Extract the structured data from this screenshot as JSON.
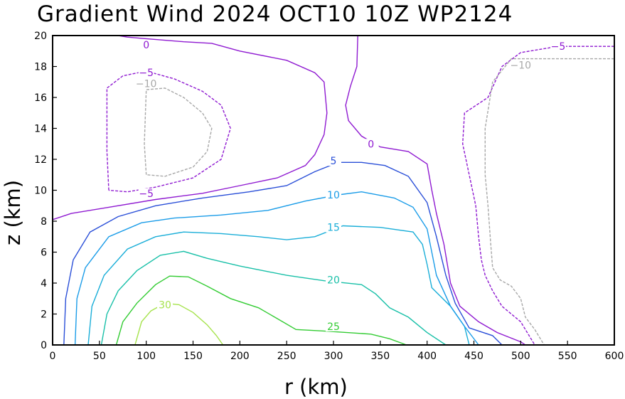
{
  "chart_data": {
    "type": "contour",
    "title": "Gradient Wind 2024 OCT10 10Z  WP2124",
    "xlabel": "r (km)",
    "ylabel": "z (km)",
    "xlim": [
      0,
      600
    ],
    "ylim": [
      0,
      20
    ],
    "xticks": [
      0,
      50,
      100,
      150,
      200,
      250,
      300,
      350,
      400,
      450,
      500,
      550,
      600
    ],
    "yticks": [
      0,
      2,
      4,
      6,
      8,
      10,
      12,
      14,
      16,
      18,
      20
    ],
    "contours": [
      {
        "level": "30",
        "color": "#a6e34d",
        "dashed": false,
        "points": [
          [
            88,
            0
          ],
          [
            95,
            1.5
          ],
          [
            105,
            2.2
          ],
          [
            120,
            2.7
          ],
          [
            135,
            2.6
          ],
          [
            150,
            2.1
          ],
          [
            165,
            1.3
          ],
          [
            175,
            0.6
          ],
          [
            182,
            0
          ]
        ],
        "labels": [
          {
            "text": "30",
            "x": 120,
            "y": 2.6
          }
        ]
      },
      {
        "level": "25",
        "color": "#33cc33",
        "dashed": false,
        "points": [
          [
            68,
            0
          ],
          [
            75,
            1.5
          ],
          [
            90,
            2.7
          ],
          [
            110,
            3.9
          ],
          [
            125,
            4.45
          ],
          [
            145,
            4.4
          ],
          [
            165,
            3.8
          ],
          [
            190,
            3.0
          ],
          [
            220,
            2.4
          ],
          [
            240,
            1.7
          ],
          [
            260,
            1.0
          ],
          [
            290,
            0.9
          ],
          [
            340,
            0.7
          ],
          [
            360,
            0.4
          ],
          [
            378,
            0
          ]
        ],
        "labels": [
          {
            "text": "25",
            "x": 300,
            "y": 1.2
          }
        ]
      },
      {
        "level": "20",
        "color": "#19c0a8",
        "dashed": false,
        "points": [
          [
            52,
            0
          ],
          [
            58,
            2
          ],
          [
            70,
            3.5
          ],
          [
            90,
            4.8
          ],
          [
            115,
            5.8
          ],
          [
            140,
            6.05
          ],
          [
            165,
            5.6
          ],
          [
            200,
            5.1
          ],
          [
            250,
            4.5
          ],
          [
            290,
            4.15
          ],
          [
            330,
            3.9
          ],
          [
            345,
            3.3
          ],
          [
            360,
            2.4
          ],
          [
            380,
            1.8
          ],
          [
            400,
            0.8
          ],
          [
            420,
            0
          ]
        ],
        "labels": [
          {
            "text": "20",
            "x": 300,
            "y": 4.2
          }
        ]
      },
      {
        "level": "15",
        "color": "#1aaed8",
        "dashed": false,
        "points": [
          [
            38,
            0
          ],
          [
            42,
            2.5
          ],
          [
            55,
            4.5
          ],
          [
            80,
            6.2
          ],
          [
            110,
            7.0
          ],
          [
            140,
            7.3
          ],
          [
            180,
            7.2
          ],
          [
            220,
            7.0
          ],
          [
            250,
            6.8
          ],
          [
            280,
            7.0
          ],
          [
            310,
            7.7
          ],
          [
            350,
            7.6
          ],
          [
            385,
            7.3
          ],
          [
            395,
            6.5
          ],
          [
            400,
            5.2
          ],
          [
            405,
            3.7
          ],
          [
            425,
            2.5
          ],
          [
            440,
            1.2
          ],
          [
            445,
            0
          ]
        ],
        "labels": [
          {
            "text": "15",
            "x": 300,
            "y": 7.6
          }
        ]
      },
      {
        "level": "10",
        "color": "#1a9ce8",
        "dashed": false,
        "points": [
          [
            24,
            0
          ],
          [
            26,
            3
          ],
          [
            35,
            5
          ],
          [
            60,
            7
          ],
          [
            95,
            7.9
          ],
          [
            130,
            8.2
          ],
          [
            180,
            8.4
          ],
          [
            230,
            8.7
          ],
          [
            270,
            9.3
          ],
          [
            305,
            9.7
          ],
          [
            330,
            9.9
          ],
          [
            365,
            9.5
          ],
          [
            385,
            8.9
          ],
          [
            400,
            7.5
          ],
          [
            410,
            4.5
          ],
          [
            425,
            2.5
          ],
          [
            440,
            1.2
          ],
          [
            455,
            0
          ]
        ],
        "labels": [
          {
            "text": "10",
            "x": 300,
            "y": 9.7
          }
        ]
      },
      {
        "level": "5",
        "color": "#2a4fd8",
        "dashed": false,
        "points": [
          [
            12,
            0
          ],
          [
            14,
            3
          ],
          [
            22,
            5.5
          ],
          [
            40,
            7.3
          ],
          [
            70,
            8.3
          ],
          [
            110,
            9.0
          ],
          [
            160,
            9.5
          ],
          [
            210,
            9.9
          ],
          [
            250,
            10.3
          ],
          [
            280,
            11.2
          ],
          [
            305,
            11.8
          ],
          [
            330,
            11.8
          ],
          [
            355,
            11.6
          ],
          [
            380,
            10.9
          ],
          [
            400,
            9.2
          ],
          [
            410,
            7.0
          ],
          [
            420,
            4.5
          ],
          [
            430,
            2.7
          ],
          [
            445,
            1.1
          ],
          [
            470,
            0.6
          ],
          [
            480,
            0
          ]
        ],
        "labels": [
          {
            "text": "5",
            "x": 300,
            "y": 11.9
          }
        ]
      },
      {
        "level": "0",
        "color": "#8f1ad1",
        "dashed": false,
        "points": [
          [
            0,
            8.1
          ],
          [
            20,
            8.5
          ],
          [
            60,
            8.9
          ],
          [
            110,
            9.4
          ],
          [
            160,
            9.8
          ],
          [
            200,
            10.3
          ],
          [
            240,
            10.8
          ],
          [
            270,
            11.6
          ],
          [
            280,
            12.3
          ],
          [
            290,
            13.6
          ],
          [
            293,
            15.0
          ],
          [
            290,
            17.0
          ],
          [
            280,
            17.6
          ],
          [
            250,
            18.4
          ],
          [
            200,
            19.0
          ],
          [
            170,
            19.5
          ],
          [
            140,
            19.6
          ],
          [
            100,
            19.8
          ],
          [
            80,
            19.9
          ],
          [
            70,
            20
          ]
        ],
        "labels": [
          {
            "text": "0",
            "x": 100,
            "y": 19.4
          }
        ]
      },
      {
        "level": "0",
        "color": "#8f1ad1",
        "dashed": false,
        "points": [
          [
            326,
            20
          ],
          [
            325,
            18
          ],
          [
            318,
            16.7
          ],
          [
            313,
            15.5
          ],
          [
            316,
            14.5
          ],
          [
            330,
            13.5
          ],
          [
            350,
            12.8
          ],
          [
            380,
            12.5
          ],
          [
            400,
            11.7
          ],
          [
            405,
            10.0
          ],
          [
            410,
            8.5
          ],
          [
            418,
            6.5
          ],
          [
            425,
            4.0
          ],
          [
            435,
            2.5
          ],
          [
            455,
            1.5
          ],
          [
            475,
            0.8
          ],
          [
            500,
            0.2
          ],
          [
            505,
            0
          ]
        ],
        "labels": [
          {
            "text": "0",
            "x": 340,
            "y": 13.0
          }
        ]
      },
      {
        "level": "-5",
        "color": "#8f1ad1",
        "dashed": true,
        "points": [
          [
            60,
            10.0
          ],
          [
            58,
            12.5
          ],
          [
            58,
            16.6
          ],
          [
            75,
            17.4
          ],
          [
            100,
            17.7
          ],
          [
            130,
            17.2
          ],
          [
            160,
            16.4
          ],
          [
            180,
            15.5
          ],
          [
            190,
            14.0
          ],
          [
            180,
            12.0
          ],
          [
            150,
            10.8
          ],
          [
            110,
            10.2
          ],
          [
            80,
            9.9
          ],
          [
            60,
            10.0
          ]
        ],
        "labels": [
          {
            "text": "-5",
            "x": 100,
            "y": 17.6
          },
          {
            "text": "-5",
            "x": 100,
            "y": 9.8
          }
        ]
      },
      {
        "level": "-5",
        "color": "#8f1ad1",
        "dashed": true,
        "points": [
          [
            600,
            19.3
          ],
          [
            540,
            19.3
          ],
          [
            500,
            18.9
          ],
          [
            480,
            18.0
          ],
          [
            465,
            16.0
          ],
          [
            440,
            15.0
          ],
          [
            438,
            13.0
          ],
          [
            445,
            11.0
          ],
          [
            452,
            9.0
          ],
          [
            455,
            7.0
          ],
          [
            458,
            5.5
          ],
          [
            462,
            4.5
          ],
          [
            470,
            3.5
          ],
          [
            480,
            2.5
          ],
          [
            500,
            1.5
          ],
          [
            505,
            1.0
          ],
          [
            510,
            0.5
          ],
          [
            515,
            0
          ]
        ],
        "labels": [
          {
            "text": "-5",
            "x": 540,
            "y": 19.3
          }
        ]
      },
      {
        "level": "-10",
        "color": "#a8a8a8",
        "dashed": true,
        "points": [
          [
            100,
            11.0
          ],
          [
            98,
            13.0
          ],
          [
            100,
            16.5
          ],
          [
            120,
            16.6
          ],
          [
            140,
            16.0
          ],
          [
            160,
            15.0
          ],
          [
            170,
            14.0
          ],
          [
            165,
            12.5
          ],
          [
            150,
            11.5
          ],
          [
            120,
            10.9
          ],
          [
            100,
            11.0
          ]
        ],
        "labels": [
          {
            "text": "-10",
            "x": 100,
            "y": 16.9
          }
        ]
      },
      {
        "level": "-10",
        "color": "#a8a8a8",
        "dashed": true,
        "points": [
          [
            600,
            18.5
          ],
          [
            560,
            18.5
          ],
          [
            520,
            18.5
          ],
          [
            490,
            18.5
          ],
          [
            470,
            17.0
          ],
          [
            462,
            14.0
          ],
          [
            462,
            11.0
          ],
          [
            465,
            9.0
          ],
          [
            468,
            6.5
          ],
          [
            470,
            5.0
          ],
          [
            478,
            4.2
          ],
          [
            490,
            3.8
          ],
          [
            500,
            3.0
          ],
          [
            505,
            1.8
          ],
          [
            515,
            1.0
          ],
          [
            525,
            0
          ]
        ],
        "labels": [
          {
            "text": "-10",
            "x": 500,
            "y": 18.1
          }
        ]
      }
    ]
  }
}
